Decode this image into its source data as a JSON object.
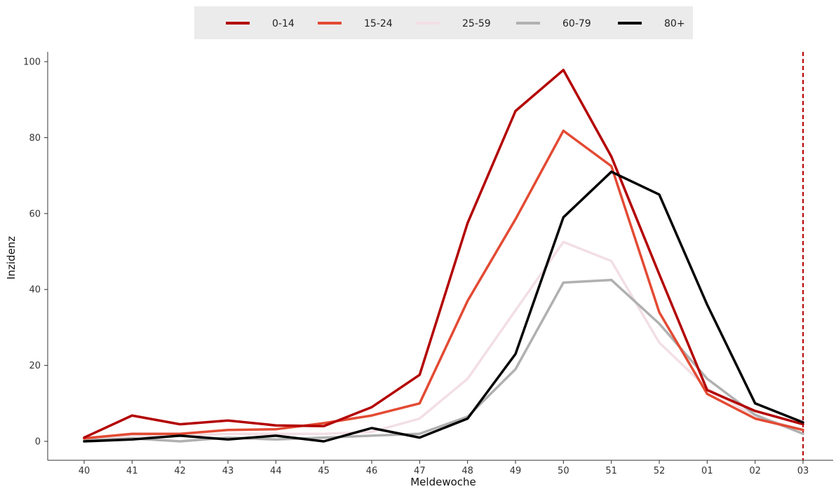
{
  "chart_data": {
    "type": "line",
    "xlabel": "Meldewoche",
    "ylabel": "Inzidenz",
    "categories": [
      "40",
      "41",
      "42",
      "43",
      "44",
      "45",
      "46",
      "47",
      "48",
      "49",
      "50",
      "51",
      "52",
      "01",
      "02",
      "03"
    ],
    "yticks": [
      0,
      20,
      40,
      60,
      80,
      100
    ],
    "ylim": [
      -3,
      103
    ],
    "grid": false,
    "legend_position": "top",
    "reference_line": {
      "x": "03",
      "color": "#b30000",
      "style": "dashed"
    },
    "series": [
      {
        "name": "0-14",
        "color": "#b30000",
        "values": [
          1,
          6.8,
          4.5,
          5.5,
          4.2,
          4,
          9,
          17.5,
          57.5,
          87,
          97.8,
          75,
          44,
          13.5,
          8,
          4.5
        ]
      },
      {
        "name": "15-24",
        "color": "#e34a33",
        "values": [
          0.8,
          2,
          2,
          3,
          3.2,
          4.8,
          6.8,
          10,
          37,
          58.5,
          81.8,
          72.5,
          34,
          12.5,
          6,
          3
        ]
      },
      {
        "name": "25-59",
        "color": "#f2dfe4",
        "values": [
          1,
          1.5,
          1.5,
          2,
          2,
          2,
          2.5,
          6,
          16.5,
          34.5,
          52.5,
          47.5,
          26,
          14,
          6.5,
          3
        ]
      },
      {
        "name": "60-79",
        "color": "#b0b0b0",
        "values": [
          0.3,
          0.8,
          0,
          1,
          0.5,
          1,
          1.5,
          2,
          6.5,
          19,
          41.8,
          42.5,
          31,
          16.5,
          7,
          2
        ]
      },
      {
        "name": "80+",
        "color": "#000000",
        "values": [
          0,
          0.5,
          1.5,
          0.5,
          1.5,
          0,
          3.5,
          1,
          6,
          23,
          59,
          71,
          65,
          36,
          10,
          5
        ]
      }
    ]
  }
}
